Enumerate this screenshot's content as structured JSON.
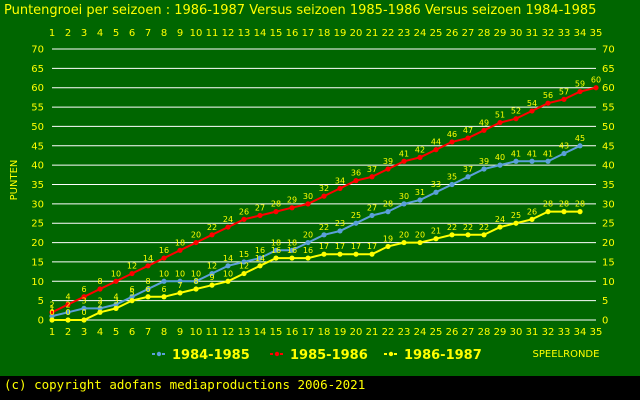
{
  "title": "Puntengroei per seizoen : 1986-1987 Versus seizoen 1985-1986 Versus seizoen 1984-1985",
  "copyright": "(c) copyright adofans mediaproductions 2006-2021",
  "colors": {
    "background": "#006600",
    "grid": "#ffffff",
    "text": "#ffff00"
  },
  "chart_data": {
    "type": "line",
    "title": "Puntengroei per seizoen : 1986-1987 Versus seizoen 1985-1986 Versus seizoen 1984-1985",
    "xlabel": "SPEELRONDE",
    "ylabel": "PUNTEN",
    "xlim": [
      1,
      35
    ],
    "ylim": [
      0,
      70
    ],
    "yticks": [
      0,
      5,
      10,
      15,
      20,
      25,
      30,
      35,
      40,
      45,
      50,
      55,
      60,
      65,
      70
    ],
    "grid": true,
    "legend_position": "bottom",
    "x": [
      1,
      2,
      3,
      4,
      5,
      6,
      7,
      8,
      9,
      10,
      11,
      12,
      13,
      14,
      15,
      16,
      17,
      18,
      19,
      20,
      21,
      22,
      23,
      24,
      25,
      26,
      27,
      28,
      29,
      30,
      31,
      32,
      33,
      34,
      35
    ],
    "series": [
      {
        "name": "1984-1985",
        "color": "#5aa0d8",
        "values": [
          1,
          2,
          3,
          3,
          4,
          6,
          8,
          10,
          10,
          10,
          12,
          14,
          15,
          16,
          18,
          18,
          20,
          22,
          23,
          25,
          27,
          28,
          30,
          31,
          33,
          35,
          37,
          39,
          40,
          41,
          41,
          41,
          43,
          45,
          null
        ]
      },
      {
        "name": "1985-1986",
        "color": "#ff0000",
        "values": [
          2,
          4,
          6,
          8,
          10,
          12,
          14,
          16,
          18,
          20,
          22,
          24,
          26,
          27,
          28,
          29,
          30,
          32,
          34,
          36,
          37,
          39,
          41,
          42,
          44,
          46,
          47,
          49,
          51,
          52,
          54,
          56,
          57,
          59,
          60
        ]
      },
      {
        "name": "1986-1987",
        "color": "#ffff00",
        "values": [
          0,
          0,
          0,
          2,
          3,
          5,
          6,
          6,
          7,
          8,
          9,
          10,
          12,
          14,
          16,
          16,
          16,
          17,
          17,
          17,
          17,
          19,
          20,
          20,
          21,
          22,
          22,
          22,
          24,
          25,
          26,
          28,
          28,
          28,
          null
        ]
      }
    ]
  }
}
